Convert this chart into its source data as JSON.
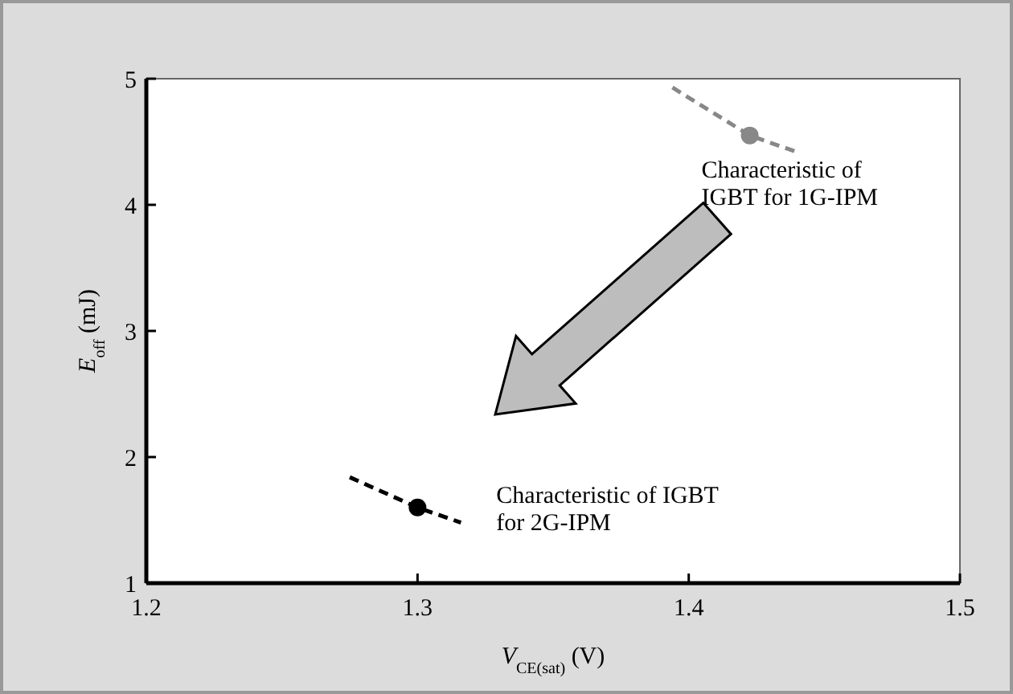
{
  "chart_data": {
    "type": "line",
    "xlabel": "V$_{CE(sat)}$ (V)",
    "ylabel": "E$_{off}$ (mJ)",
    "xlim": [
      1.2,
      1.5
    ],
    "xticks": [
      1.2,
      1.3,
      1.4,
      1.5
    ],
    "ylim": [
      1,
      5
    ],
    "yticks": [
      1,
      2,
      3,
      4,
      5
    ],
    "grid": false,
    "series": [
      {
        "color": "#888888",
        "line_style": "dashed",
        "marker": "none",
        "x": [
          1.394,
          1.4225,
          1.441
        ],
        "values": [
          4.93,
          4.55,
          4.41
        ]
      },
      {
        "type": "scatter",
        "color": "#888888",
        "marker": "circle",
        "x": [
          1.4225
        ],
        "values": [
          4.55
        ]
      },
      {
        "color": "#000000",
        "line_style": "dashed",
        "marker": "none",
        "x": [
          1.275,
          1.3,
          1.316
        ],
        "values": [
          1.84,
          1.6,
          1.48
        ]
      },
      {
        "type": "scatter",
        "color": "#000000",
        "marker": "circle",
        "x": [
          1.3
        ],
        "values": [
          1.6
        ]
      }
    ],
    "annotations": [
      "Characteristic of\nIGBT for 1G-IPM",
      "Characteristic of IGBT\nfor 2G-IPM"
    ]
  }
}
